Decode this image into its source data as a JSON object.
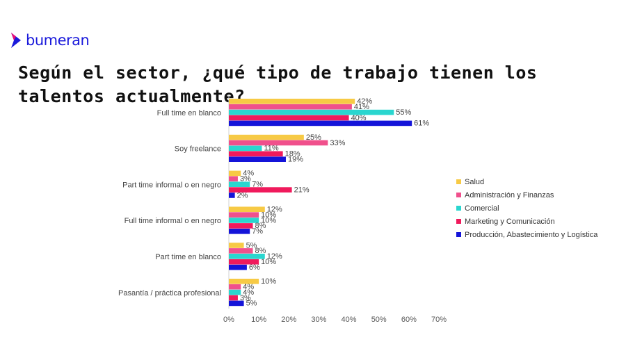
{
  "brand": {
    "name": "bumeran",
    "color": "#1a1adb",
    "icon": "bumeran-arrow-icon"
  },
  "page": {
    "title": "Según el sector, ¿qué tipo de trabajo tienen los talentos actualmente?"
  },
  "chart_data": {
    "type": "bar",
    "orientation": "horizontal",
    "categories": [
      "Full time en blanco",
      "Soy freelance",
      "Part time informal o en negro",
      "Full time informal o en negro",
      "Part time en blanco",
      "Pasantía / práctica profesional"
    ],
    "series": [
      {
        "name": "Salud",
        "color": "#f7ca45",
        "values": [
          42,
          25,
          4,
          12,
          5,
          10
        ]
      },
      {
        "name": "Administración y Finanzas",
        "color": "#f0508c",
        "values": [
          41,
          33,
          3,
          10,
          8,
          4
        ]
      },
      {
        "name": "Comercial",
        "color": "#2ad6cf",
        "values": [
          55,
          11,
          7,
          10,
          12,
          4
        ]
      },
      {
        "name": "Marketing y Comunicación",
        "color": "#f01a5c",
        "values": [
          40,
          18,
          21,
          8,
          10,
          3
        ]
      },
      {
        "name": "Producción, Abastecimiento y Logística",
        "color": "#1414d9",
        "values": [
          61,
          19,
          2,
          7,
          6,
          5
        ]
      }
    ],
    "value_suffix": "%",
    "xlim": [
      0,
      70
    ],
    "xticks": [
      "0%",
      "10%",
      "20%",
      "30%",
      "40%",
      "50%",
      "60%",
      "70%"
    ],
    "grid": false,
    "legend_position": "right"
  }
}
